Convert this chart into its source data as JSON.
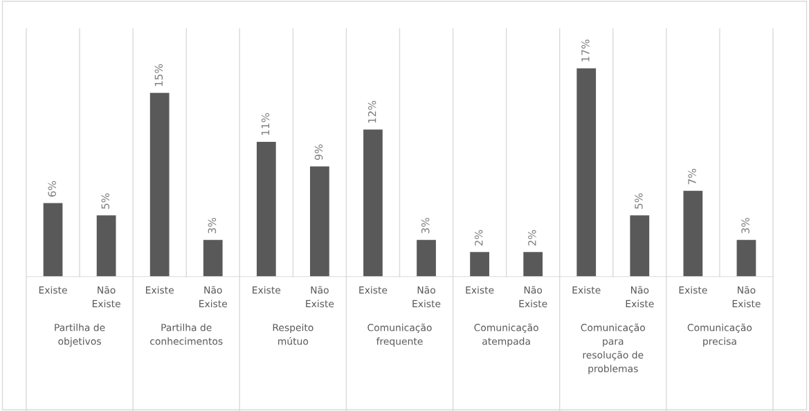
{
  "chart_data": {
    "type": "bar",
    "categories": [
      "Existe",
      "Não Existe",
      "Existe",
      "Não Existe",
      "Existe",
      "Não Existe",
      "Existe",
      "Não Existe",
      "Existe",
      "Não Existe",
      "Existe",
      "Não Existe",
      "Existe",
      "Não Existe"
    ],
    "values": [
      6,
      5,
      15,
      3,
      11,
      9,
      12,
      3,
      2,
      2,
      17,
      5,
      7,
      3
    ],
    "value_labels": [
      "6%",
      "5%",
      "15%",
      "3%",
      "11%",
      "9%",
      "12%",
      "3%",
      "2%",
      "2%",
      "17%",
      "5%",
      "7%",
      "3%"
    ],
    "color": "#595959",
    "annotations": [
      "Partilha de objetivos",
      "Partilha de conhecimentos",
      "Respeito mútuo",
      "Comunicação frequente",
      "Comunicação atempada",
      "Comunicação para resolução de problemas",
      "Comunicação precisa"
    ],
    "grid": false,
    "legend": false
  }
}
